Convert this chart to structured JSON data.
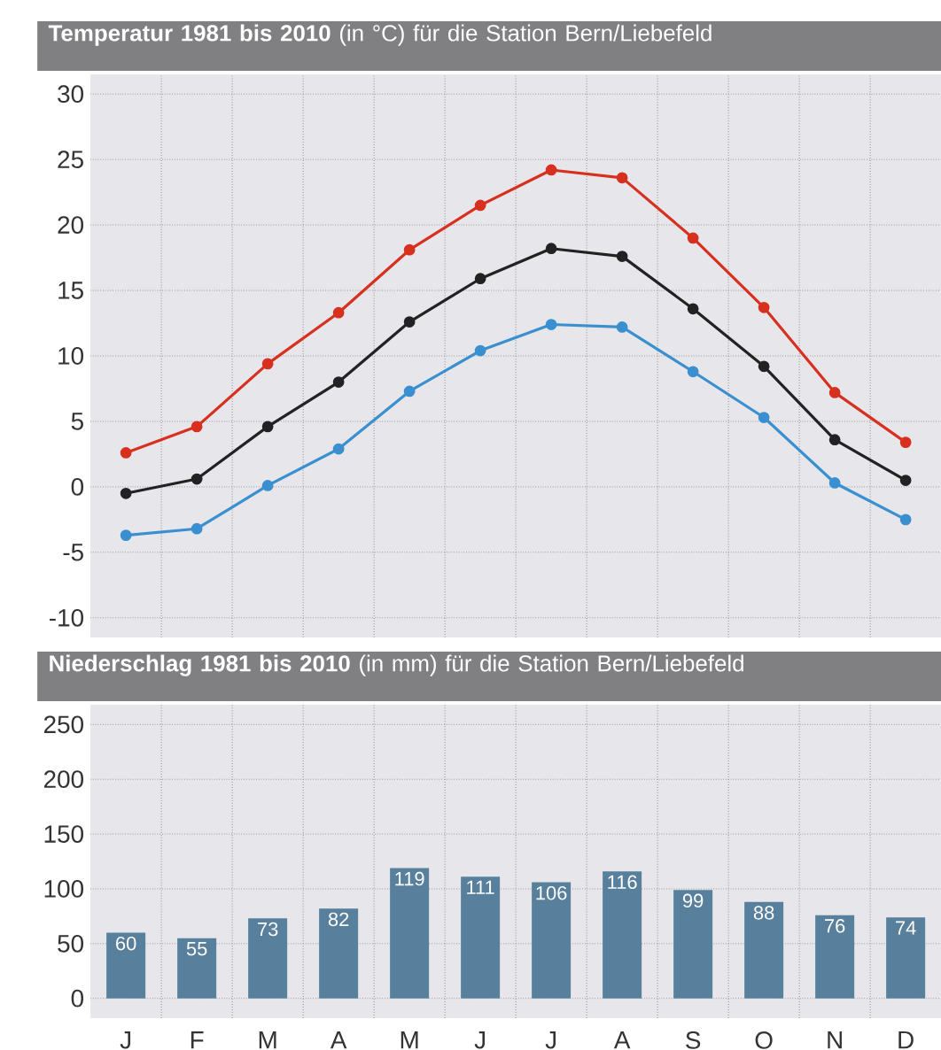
{
  "chart_data": [
    {
      "type": "line",
      "title": "**Temperatur 1981 bis 2010** (in °C) für die Station Bern/Liebefeld",
      "categories": [
        null,
        null,
        null,
        null,
        null,
        null,
        null,
        null,
        null,
        null,
        null,
        null
      ],
      "series": [
        {
          "color": "#d7301f",
          "values": [
            2.6,
            4.6,
            9.4,
            13.3,
            18.1,
            21.5,
            24.2,
            23.6,
            19.0,
            13.7,
            7.2,
            3.4
          ]
        },
        {
          "color": "#222222",
          "values": [
            -0.5,
            0.6,
            4.6,
            8.0,
            12.6,
            15.9,
            18.2,
            17.6,
            13.6,
            9.2,
            3.6,
            0.5
          ]
        },
        {
          "color": "#3a8fd0",
          "values": [
            -3.7,
            -3.2,
            0.1,
            2.9,
            7.3,
            10.4,
            12.4,
            12.2,
            8.8,
            5.3,
            0.3,
            -2.5
          ]
        }
      ],
      "ylim": [
        -11.5,
        31.5
      ],
      "yticks": [
        -10,
        -5,
        0,
        5,
        10,
        15,
        20,
        25,
        30
      ],
      "grid": true,
      "marker": "circle",
      "tick_labels": "y"
    },
    {
      "type": "bar",
      "title": "**Niederschlag 1981 bis 2010** (in mm) für die Station Bern/Liebefeld",
      "categories": [
        "J",
        "F",
        "M",
        "A",
        "M",
        "J",
        "J",
        "A",
        "S",
        "O",
        "N",
        "D"
      ],
      "values": [
        60,
        55,
        73,
        82,
        119,
        111,
        106,
        116,
        99,
        88,
        76,
        74
      ],
      "color": "#58809c",
      "ylim": [
        -18,
        268
      ],
      "yticks": [
        0,
        50,
        100,
        150,
        200,
        250
      ],
      "grid": true,
      "data_labels": true
    }
  ]
}
